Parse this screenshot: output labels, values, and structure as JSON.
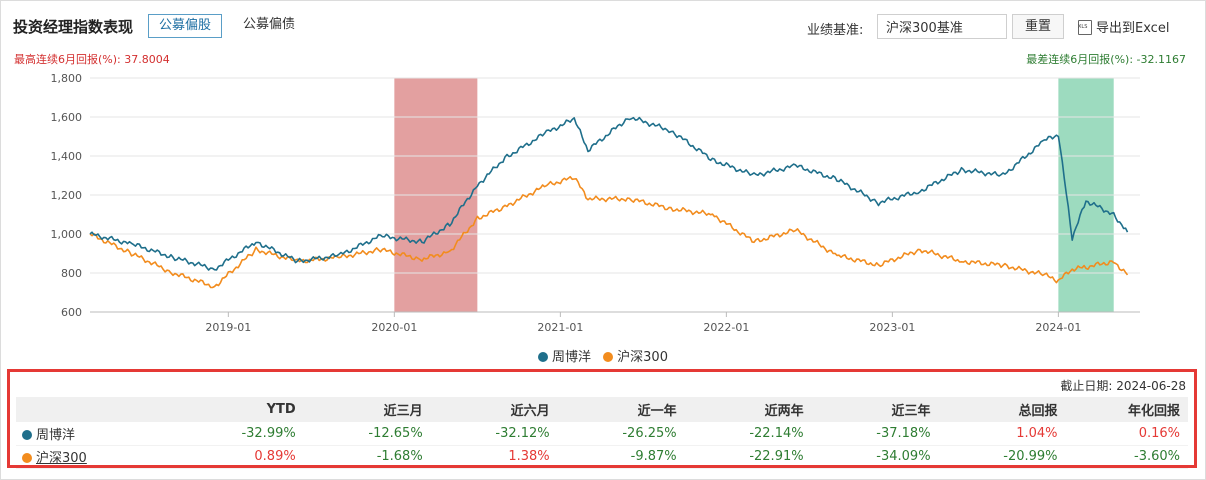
{
  "header": {
    "title": "投资经理指数表现",
    "tabs": [
      {
        "label": "公募偏股",
        "active": true
      },
      {
        "label": "公募偏债",
        "active": false
      }
    ],
    "benchmark_label": "业绩基准:",
    "benchmark_value": "沪深300基准",
    "reset_label": "重置",
    "export_label": "导出到Excel",
    "export_icon": "xls-file-icon"
  },
  "stats": {
    "best": "最高连续6月回报(%): 37.8004",
    "worst": "最差连续6月回报(%): -32.1167"
  },
  "colors": {
    "manager": "#1f6f8b",
    "index": "#f28c1e",
    "best_band": "#d98080",
    "worst_band": "#7ccfa9"
  },
  "chart_data": {
    "type": "line",
    "x": [
      "2018-03",
      "2018-06",
      "2018-09",
      "2018-12",
      "2019-03",
      "2019-06",
      "2019-09",
      "2019-12",
      "2020-03",
      "2020-05",
      "2020-07",
      "2020-09",
      "2020-12",
      "2021-02",
      "2021-03",
      "2021-06",
      "2021-09",
      "2021-12",
      "2022-03",
      "2022-06",
      "2022-09",
      "2022-12",
      "2023-03",
      "2023-06",
      "2023-09",
      "2023-12",
      "2024-01",
      "2024-02",
      "2024-03",
      "2024-05",
      "2024-06"
    ],
    "series": [
      {
        "name": "周博洋",
        "values": [
          1000,
          950,
          880,
          820,
          960,
          860,
          890,
          990,
          960,
          1050,
          1250,
          1390,
          1520,
          1590,
          1430,
          1600,
          1530,
          1380,
          1300,
          1350,
          1280,
          1160,
          1220,
          1330,
          1300,
          1480,
          1510,
          980,
          1170,
          1100,
          1010
        ]
      },
      {
        "name": "沪深300",
        "values": [
          1000,
          900,
          800,
          730,
          920,
          860,
          880,
          920,
          870,
          910,
          1080,
          1140,
          1250,
          1290,
          1180,
          1180,
          1130,
          1100,
          960,
          1020,
          890,
          840,
          920,
          860,
          840,
          790,
          760,
          820,
          830,
          860,
          790
        ]
      }
    ],
    "xticks": [
      "2019-01",
      "2020-01",
      "2021-01",
      "2022-01",
      "2023-01",
      "2024-01"
    ],
    "ylim": [
      600,
      1800
    ],
    "yticks": [
      600,
      800,
      1000,
      1200,
      1400,
      1600,
      1800
    ],
    "highlight_best": [
      "2020-01",
      "2020-07"
    ],
    "highlight_worst": [
      "2024-01",
      "2024-05"
    ],
    "grid": true,
    "legend": "bottom"
  },
  "table": {
    "asof": "截止日期: 2024-06-28",
    "headers": [
      "",
      "YTD",
      "近三月",
      "近六月",
      "近一年",
      "近两年",
      "近三年",
      "总回报",
      "年化回报"
    ],
    "rows": [
      {
        "name": "周博洋",
        "values": [
          "-32.99%",
          "-12.65%",
          "-32.12%",
          "-26.25%",
          "-22.14%",
          "-37.18%",
          "1.04%",
          "0.16%"
        ]
      },
      {
        "name": "沪深300",
        "values": [
          "0.89%",
          "-1.68%",
          "1.38%",
          "-9.87%",
          "-22.91%",
          "-34.09%",
          "-20.99%",
          "-3.60%"
        ]
      }
    ]
  }
}
